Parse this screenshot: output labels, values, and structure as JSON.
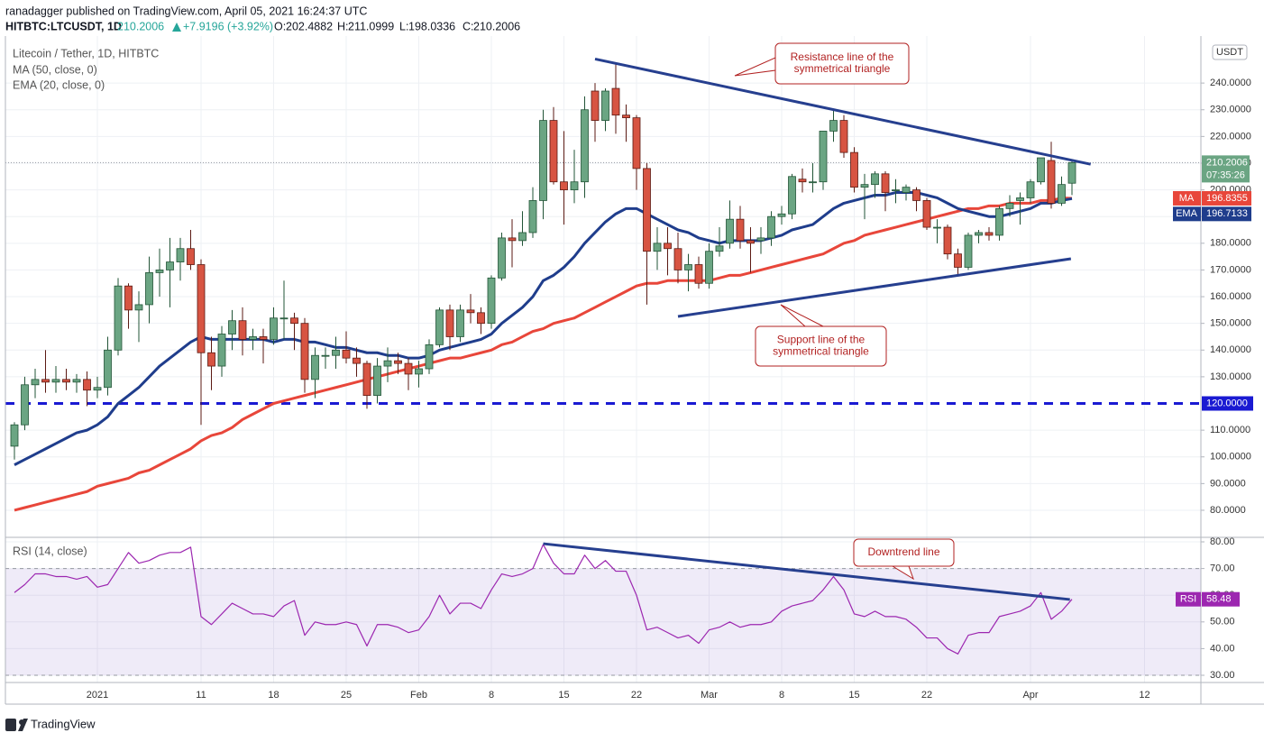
{
  "header": {
    "byline": "ranadagger published on TradingView.com, April 05, 2021 16:24:37 UTC",
    "symbol": "HITBTC:LTCUSDT, 1D",
    "change": "+7.9196 (+3.92%)",
    "ohlc_labels": [
      "O:",
      "H:",
      "L:",
      "C:"
    ]
  },
  "footer": {
    "brand": "TradingView"
  },
  "chart_data": [
    {
      "type": "candlestick",
      "title": "Litecoin / Tether, 1D, HITBTC",
      "currency": "USDT",
      "countdown": "07:35:26",
      "categories": [
        null,
        null,
        null,
        null,
        null,
        null,
        null,
        null,
        "2021",
        null,
        null,
        null,
        null,
        null,
        null,
        null,
        null,
        null,
        "11",
        null,
        null,
        null,
        null,
        null,
        null,
        "18",
        null,
        null,
        null,
        null,
        null,
        null,
        "25",
        null,
        null,
        null,
        null,
        null,
        null,
        "Feb",
        null,
        null,
        null,
        null,
        null,
        null,
        "8",
        null,
        null,
        null,
        null,
        null,
        null,
        "15",
        null,
        null,
        null,
        null,
        null,
        null,
        "22",
        null,
        null,
        null,
        null,
        null,
        null,
        "Mar",
        null,
        null,
        null,
        null,
        null,
        null,
        "8",
        null,
        null,
        null,
        null,
        null,
        null,
        "15",
        null,
        null,
        null,
        null,
        null,
        null,
        "22",
        null,
        null,
        null,
        null,
        null,
        null,
        null,
        null,
        null,
        "Apr",
        null,
        null,
        null,
        null,
        null,
        null,
        null,
        null,
        null,
        null,
        "12"
      ],
      "open": [
        104,
        112,
        127,
        129,
        128,
        129,
        128,
        129,
        125,
        126,
        140,
        164,
        155,
        157,
        169,
        170,
        173,
        178,
        172,
        139,
        134,
        146,
        151,
        144,
        145,
        144,
        152,
        152,
        150,
        129,
        138,
        138,
        140,
        137,
        135,
        123,
        134,
        136,
        135,
        131,
        133,
        142,
        155,
        145,
        155,
        154,
        150,
        167,
        182,
        181,
        184,
        196,
        226,
        203,
        200,
        203,
        237,
        226,
        238,
        228,
        227,
        208,
        177,
        180,
        178,
        170,
        172,
        165,
        177,
        180,
        189,
        181,
        181,
        182,
        190,
        191,
        204,
        203,
        203,
        222,
        226,
        214,
        201,
        202,
        206,
        200,
        199,
        200,
        196,
        186,
        186,
        176,
        171,
        183,
        184,
        183,
        193,
        196,
        197,
        203,
        211,
        195,
        202.4882,
        null,
        null,
        null,
        null,
        null,
        null,
        null
      ],
      "high": [
        113,
        130,
        133,
        140,
        134,
        133,
        131,
        132,
        130,
        145,
        167,
        165,
        162,
        175,
        178,
        182,
        182,
        185,
        174,
        145,
        149,
        155,
        156,
        148,
        148,
        156,
        166,
        154,
        152,
        141,
        141,
        145,
        147,
        141,
        136,
        137,
        141,
        139,
        137,
        136,
        144,
        156,
        157,
        157,
        161,
        156,
        168,
        184,
        189,
        192,
        201,
        230,
        231,
        222,
        215,
        235,
        240,
        238,
        247,
        232,
        228,
        210,
        186,
        186,
        184,
        176,
        175,
        180,
        186,
        196,
        194,
        186,
        186,
        192,
        194,
        206,
        208,
        210,
        222,
        230,
        228,
        216,
        206,
        207,
        207,
        204,
        202,
        201,
        197,
        189,
        187,
        178,
        184,
        185,
        186,
        194,
        198,
        199,
        204,
        212,
        218,
        205,
        211.0999,
        null,
        null,
        null,
        null,
        null,
        null,
        null
      ],
      "low": [
        99,
        110,
        122,
        124,
        124,
        125,
        124,
        119,
        122,
        123,
        138,
        148,
        143,
        150,
        160,
        156,
        166,
        170,
        112,
        125,
        130,
        140,
        138,
        140,
        135,
        142,
        144,
        140,
        124,
        122,
        133,
        133,
        135,
        130,
        118,
        120,
        128,
        131,
        125,
        126,
        131,
        141,
        140,
        143,
        150,
        146,
        148,
        166,
        171,
        179,
        182,
        189,
        202,
        187,
        195,
        197,
        218,
        222,
        221,
        218,
        200,
        157,
        170,
        168,
        165,
        162,
        163,
        163,
        175,
        178,
        178,
        169,
        176,
        179,
        187,
        189,
        199,
        199,
        200,
        218,
        212,
        199,
        189,
        197,
        192,
        195,
        196,
        192,
        185,
        180,
        174,
        168,
        170,
        180,
        181,
        181,
        190,
        187,
        195,
        202,
        193,
        194,
        198.0336,
        null,
        null,
        null,
        null,
        null,
        null,
        null
      ],
      "close": [
        112,
        127,
        129,
        128,
        129,
        128,
        129,
        125,
        126,
        140,
        164,
        155,
        157,
        169,
        170,
        173,
        178,
        172,
        139,
        134,
        146,
        151,
        144,
        145,
        144,
        152,
        152,
        150,
        129,
        138,
        138,
        140,
        137,
        135,
        123,
        134,
        136,
        135,
        131,
        133,
        142,
        155,
        145,
        155,
        154,
        150,
        167,
        182,
        181,
        184,
        196,
        226,
        203,
        200,
        203,
        230,
        226,
        237,
        228,
        227,
        208,
        177,
        180,
        178,
        170,
        172,
        165,
        177,
        179,
        189,
        181,
        180,
        182,
        190,
        191,
        205,
        203,
        203,
        222,
        226,
        214,
        201,
        202,
        206,
        199,
        200,
        201,
        196,
        186,
        186,
        176,
        171,
        183,
        184,
        183,
        193,
        195,
        197,
        203,
        212,
        195,
        202,
        210.2006,
        null,
        null,
        null,
        null,
        null,
        null,
        null
      ],
      "up_color": "#6ba583",
      "down_color": "#d75442",
      "up_border": "#225437",
      "down_border": "#5b1a13",
      "series": [
        {
          "name": "MA (50, close, 0)",
          "short": "MA",
          "color": "#e8463a",
          "values": [
            80,
            81,
            82,
            83,
            84,
            85,
            86,
            87,
            89,
            90,
            91,
            92,
            94,
            95,
            97,
            99,
            101,
            103,
            106,
            108,
            109,
            111,
            114,
            116,
            118,
            120,
            121,
            122,
            123,
            124,
            125,
            126,
            127,
            128,
            129,
            130,
            131,
            132,
            133,
            134,
            135,
            136,
            137,
            137,
            138,
            139,
            140,
            142,
            143,
            145,
            147,
            148,
            150,
            151,
            152,
            154,
            156,
            158,
            160,
            162,
            164,
            165,
            165,
            166,
            166,
            166,
            166,
            166,
            167,
            168,
            168,
            169,
            170,
            171,
            172,
            173,
            174,
            175,
            176,
            178,
            180,
            181,
            183,
            184,
            185,
            186,
            187,
            188,
            189,
            190,
            191,
            192,
            193,
            193,
            194,
            194,
            195,
            195,
            195,
            196,
            196,
            197,
            196.8355,
            null,
            null,
            null,
            null,
            null,
            null,
            null
          ]
        },
        {
          "name": "EMA (20, close, 0)",
          "short": "EMA",
          "color": "#1f3d8c",
          "values": [
            97,
            99,
            101,
            103,
            105,
            107,
            109,
            110,
            112,
            115,
            120,
            123,
            126,
            130,
            134,
            137,
            140,
            143,
            145,
            144,
            144,
            144,
            144,
            144,
            144,
            143,
            144,
            144,
            143,
            143,
            142,
            141,
            141,
            140,
            139,
            139,
            138,
            138,
            137,
            137,
            138,
            140,
            141,
            142,
            143,
            144,
            146,
            150,
            153,
            156,
            160,
            166,
            168,
            171,
            175,
            180,
            184,
            188,
            191,
            193,
            193,
            191,
            189,
            187,
            185,
            184,
            182,
            181,
            180,
            181,
            181,
            181,
            181,
            182,
            183,
            185,
            186,
            187,
            190,
            193,
            195,
            196,
            197,
            198,
            198,
            199,
            199,
            199,
            198,
            197,
            195,
            193,
            192,
            191,
            190,
            190,
            191,
            192,
            193,
            195,
            195,
            196,
            196.7133,
            null,
            null,
            null,
            null,
            null,
            null,
            null
          ]
        }
      ],
      "ylim": [
        70.2,
        257.6
      ],
      "yticks": [
        {
          "value": 80,
          "label": "80.0000"
        },
        {
          "value": 90,
          "label": "90.0000"
        },
        {
          "value": 100,
          "label": "100.0000"
        },
        {
          "value": 110,
          "label": "110.0000"
        },
        {
          "value": 130,
          "label": "130.0000"
        },
        {
          "value": 140,
          "label": "140.0000"
        },
        {
          "value": 150,
          "label": "150.0000"
        },
        {
          "value": 160,
          "label": "160.0000"
        },
        {
          "value": 170,
          "label": "170.0000"
        },
        {
          "value": 180,
          "label": "180.0000"
        },
        {
          "value": 190,
          "label": "190.0000"
        },
        {
          "value": 200,
          "label": "200.0000"
        },
        {
          "value": 210,
          "label": "210.0000"
        },
        {
          "value": 220,
          "label": "220.0000"
        },
        {
          "value": 230,
          "label": "230.0000"
        },
        {
          "value": 240,
          "label": "240.0000"
        }
      ],
      "grid": true,
      "hlines": [
        {
          "value": 120,
          "label": "120.0000",
          "color": "#1a1ad2"
        }
      ],
      "trendlines": [
        {
          "points": [
            [
              56,
              249
            ],
            [
              103.8,
              209.6
            ]
          ],
          "color": "#263f8f"
        },
        {
          "points": [
            [
              64,
              152.6
            ],
            [
              101.9,
              174.2
            ]
          ],
          "color": "#263f8f"
        }
      ],
      "annotations": [
        {
          "lines": [
            "Resistance line of the",
            "symmetrical triangle"
          ],
          "color": "#b22222"
        },
        {
          "lines": [
            "Support line of the",
            "symmetrical triangle"
          ],
          "color": "#b22222"
        }
      ]
    },
    {
      "type": "line",
      "title": "RSI (14, close)",
      "series": [
        {
          "name": "RSI",
          "color": "#9c27b0",
          "values": [
            61,
            64,
            68,
            68,
            67,
            67,
            66,
            67,
            63,
            64,
            70,
            76,
            72,
            73,
            75,
            76,
            76,
            78,
            52,
            49,
            53,
            57,
            55,
            53,
            53,
            52,
            56,
            58,
            45,
            50,
            49,
            49,
            50,
            49,
            41,
            49,
            49,
            48,
            46,
            47,
            52,
            60,
            53,
            57,
            57,
            55,
            62,
            68,
            67,
            68,
            70,
            79,
            72,
            68,
            68,
            75,
            70,
            73,
            69,
            69,
            60,
            47,
            48,
            46,
            44,
            45,
            42,
            47,
            48,
            50,
            48,
            49,
            49,
            50,
            54,
            56,
            57,
            58,
            62,
            67,
            62,
            53,
            52,
            54,
            52,
            52,
            51,
            48,
            44,
            44,
            40,
            38,
            45,
            46,
            46,
            52,
            53,
            54,
            56,
            61,
            51,
            54,
            58.48,
            null,
            null,
            null,
            null,
            null,
            null,
            null
          ]
        }
      ],
      "ylim": [
        27.3,
        81.35
      ],
      "yticks": [
        {
          "value": 30,
          "label": "30.00"
        },
        {
          "value": 40,
          "label": "40.00"
        },
        {
          "value": 50,
          "label": "50.00"
        },
        {
          "value": 60,
          "label": "60.00"
        },
        {
          "value": 70,
          "label": "70.00"
        },
        {
          "value": 80,
          "label": "80.00"
        }
      ],
      "band": [
        30,
        70
      ],
      "band_color": "#7e57c2",
      "trendlines": [
        {
          "points": [
            [
              51,
              79.3
            ],
            [
              101.8,
              58.4
            ]
          ],
          "color": "#263f8f"
        }
      ],
      "annotations": [
        {
          "lines": [
            "Downtrend line"
          ],
          "color": "#b22222"
        }
      ]
    }
  ]
}
